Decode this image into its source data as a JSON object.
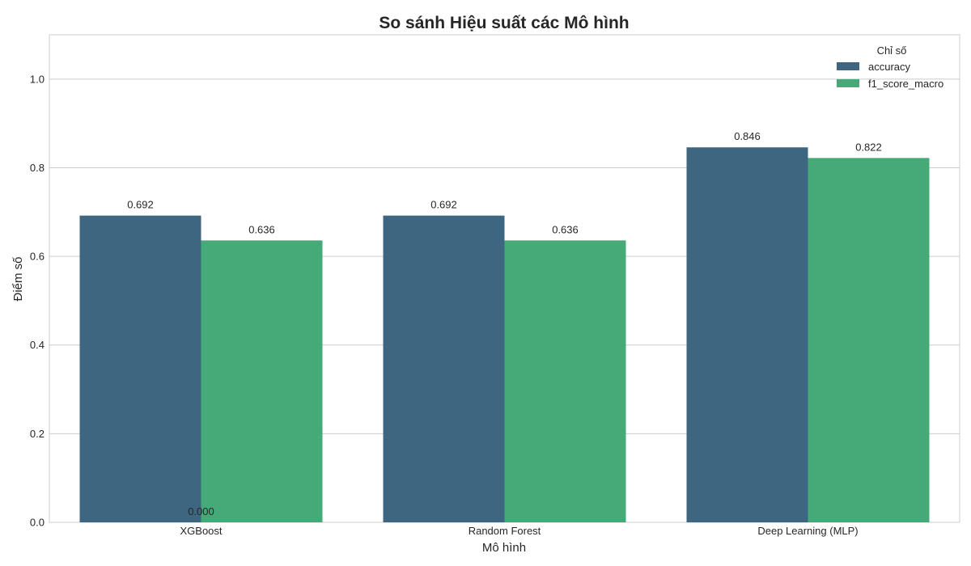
{
  "chart_data": {
    "type": "bar",
    "title": "So sánh Hiệu suất các Mô hình",
    "xlabel": "Mô hình",
    "ylabel": "Điểm số",
    "categories": [
      "XGBoost",
      "Random Forest",
      "Deep Learning (MLP)"
    ],
    "series": [
      {
        "name": "accuracy",
        "values": [
          0.692,
          0.692,
          0.846
        ],
        "labels": [
          "0.692",
          "0.692",
          "0.846"
        ],
        "color": "#3e6680"
      },
      {
        "name": "f1_score_macro",
        "values": [
          0.636,
          0.636,
          0.822
        ],
        "labels": [
          "0.636",
          "0.636",
          "0.822"
        ],
        "color": "#45a978"
      }
    ],
    "extra_annotation": "0.000",
    "ylim": [
      0,
      1.1
    ],
    "yticks": [
      0.0,
      0.2,
      0.4,
      0.6,
      0.8,
      1.0
    ],
    "ytick_labels": [
      "0.0",
      "0.2",
      "0.4",
      "0.6",
      "0.8",
      "1.0"
    ],
    "grid": true,
    "legend": {
      "title": "Chỉ số",
      "placement": "top-right"
    }
  }
}
